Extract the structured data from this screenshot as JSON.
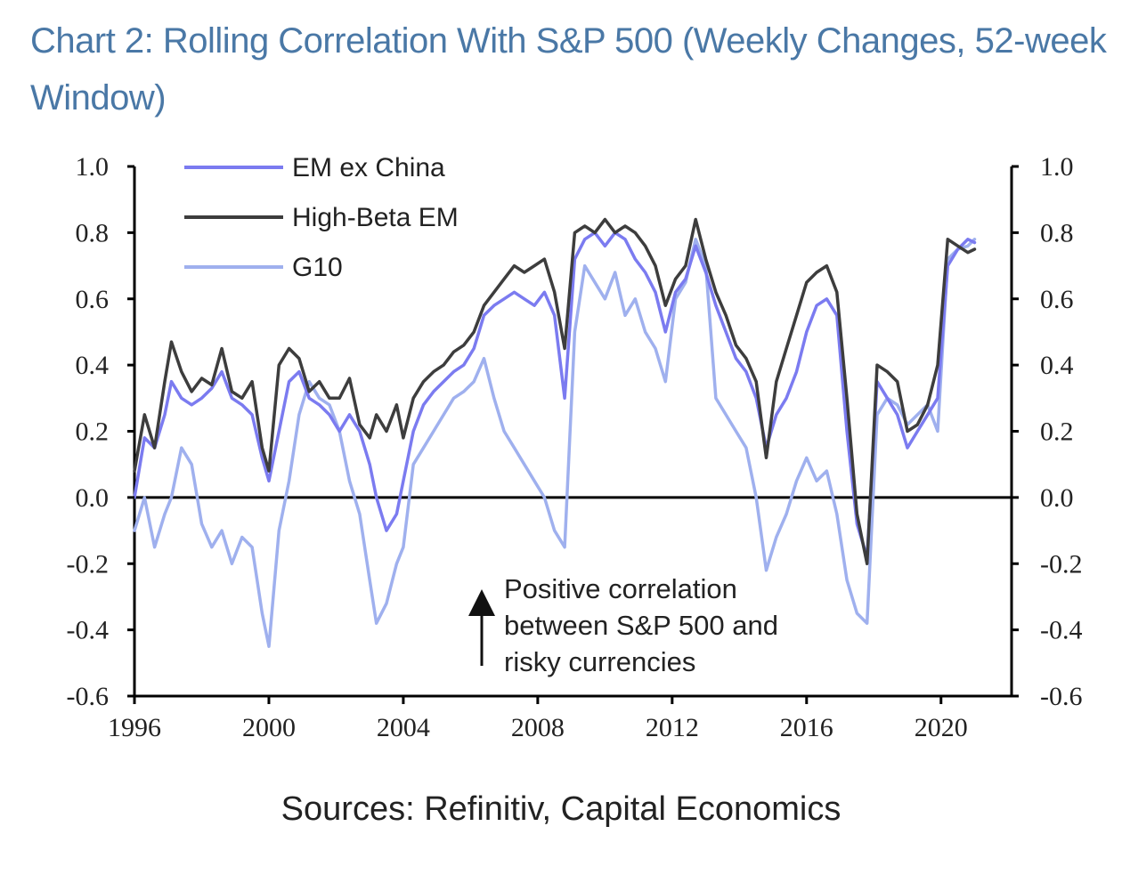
{
  "title": "Chart 2: Rolling Correlation With S&P 500 (Weekly Changes, 52-week Window)",
  "source": "Sources: Refinitiv, Capital Economics",
  "colors": {
    "em_ex_china": "#7b7bf0",
    "high_beta_em": "#3d3d3d",
    "g10": "#9fb0ee",
    "axis": "#000000"
  },
  "chart_data": {
    "type": "line",
    "x_ticks": [
      "1996",
      "2000",
      "2004",
      "2008",
      "2012",
      "2016",
      "2020"
    ],
    "y_ticks": [
      "1.0",
      "0.8",
      "0.6",
      "0.4",
      "0.2",
      "0.0",
      "-0.2",
      "-0.4",
      "-0.6"
    ],
    "xlim": [
      1996,
      2022.1
    ],
    "ylim": [
      -0.6,
      1.0
    ],
    "grid": false,
    "legend_position": "top-left",
    "annotation": [
      "Positive correlation",
      "between S&P 500 and",
      "risky currencies"
    ],
    "series": [
      {
        "name": "EM ex China",
        "x": [
          1996.0,
          1996.3,
          1996.6,
          1996.9,
          1997.1,
          1997.4,
          1997.7,
          1998.0,
          1998.3,
          1998.6,
          1998.9,
          1999.2,
          1999.5,
          1999.8,
          2000.0,
          2000.3,
          2000.6,
          2000.9,
          2001.2,
          2001.5,
          2001.8,
          2002.1,
          2002.4,
          2002.7,
          2003.0,
          2003.2,
          2003.5,
          2003.8,
          2004.0,
          2004.3,
          2004.6,
          2004.9,
          2005.2,
          2005.5,
          2005.8,
          2006.1,
          2006.4,
          2006.7,
          2007.0,
          2007.3,
          2007.6,
          2007.9,
          2008.2,
          2008.5,
          2008.8,
          2009.1,
          2009.4,
          2009.7,
          2010.0,
          2010.3,
          2010.6,
          2010.9,
          2011.2,
          2011.5,
          2011.8,
          2012.1,
          2012.4,
          2012.7,
          2013.0,
          2013.3,
          2013.6,
          2013.9,
          2014.2,
          2014.5,
          2014.8,
          2015.1,
          2015.4,
          2015.7,
          2016.0,
          2016.3,
          2016.6,
          2016.9,
          2017.2,
          2017.5,
          2017.8,
          2018.1,
          2018.4,
          2018.7,
          2019.0,
          2019.3,
          2019.6,
          2019.9,
          2020.2,
          2020.5,
          2020.8,
          2021.0
        ],
        "values": [
          0.0,
          0.18,
          0.15,
          0.25,
          0.35,
          0.3,
          0.28,
          0.3,
          0.33,
          0.38,
          0.3,
          0.28,
          0.25,
          0.12,
          0.05,
          0.2,
          0.35,
          0.38,
          0.3,
          0.28,
          0.25,
          0.2,
          0.25,
          0.2,
          0.1,
          0.0,
          -0.1,
          -0.05,
          0.05,
          0.2,
          0.28,
          0.32,
          0.35,
          0.38,
          0.4,
          0.45,
          0.55,
          0.58,
          0.6,
          0.62,
          0.6,
          0.58,
          0.62,
          0.55,
          0.3,
          0.72,
          0.78,
          0.8,
          0.76,
          0.8,
          0.78,
          0.72,
          0.68,
          0.62,
          0.5,
          0.62,
          0.66,
          0.76,
          0.68,
          0.58,
          0.5,
          0.42,
          0.38,
          0.3,
          0.15,
          0.25,
          0.3,
          0.38,
          0.5,
          0.58,
          0.6,
          0.55,
          0.2,
          -0.08,
          -0.18,
          0.35,
          0.3,
          0.25,
          0.15,
          0.2,
          0.25,
          0.3,
          0.7,
          0.75,
          0.78,
          0.77
        ]
      },
      {
        "name": "High-Beta EM",
        "x": [
          1996.0,
          1996.3,
          1996.6,
          1996.9,
          1997.1,
          1997.4,
          1997.7,
          1998.0,
          1998.3,
          1998.6,
          1998.9,
          1999.2,
          1999.5,
          1999.8,
          2000.0,
          2000.3,
          2000.6,
          2000.9,
          2001.2,
          2001.5,
          2001.8,
          2002.1,
          2002.4,
          2002.7,
          2003.0,
          2003.2,
          2003.5,
          2003.8,
          2004.0,
          2004.3,
          2004.6,
          2004.9,
          2005.2,
          2005.5,
          2005.8,
          2006.1,
          2006.4,
          2006.7,
          2007.0,
          2007.3,
          2007.6,
          2007.9,
          2008.2,
          2008.5,
          2008.8,
          2009.1,
          2009.4,
          2009.7,
          2010.0,
          2010.3,
          2010.6,
          2010.9,
          2011.2,
          2011.5,
          2011.8,
          2012.1,
          2012.4,
          2012.7,
          2013.0,
          2013.3,
          2013.6,
          2013.9,
          2014.2,
          2014.5,
          2014.8,
          2015.1,
          2015.4,
          2015.7,
          2016.0,
          2016.3,
          2016.6,
          2016.9,
          2017.2,
          2017.5,
          2017.8,
          2018.1,
          2018.4,
          2018.7,
          2019.0,
          2019.3,
          2019.6,
          2019.9,
          2020.2,
          2020.5,
          2020.8,
          2021.0
        ],
        "values": [
          0.08,
          0.25,
          0.15,
          0.35,
          0.47,
          0.38,
          0.32,
          0.36,
          0.34,
          0.45,
          0.32,
          0.3,
          0.35,
          0.15,
          0.08,
          0.4,
          0.45,
          0.42,
          0.32,
          0.35,
          0.3,
          0.3,
          0.36,
          0.22,
          0.18,
          0.25,
          0.2,
          0.28,
          0.18,
          0.3,
          0.35,
          0.38,
          0.4,
          0.44,
          0.46,
          0.5,
          0.58,
          0.62,
          0.66,
          0.7,
          0.68,
          0.7,
          0.72,
          0.62,
          0.45,
          0.8,
          0.82,
          0.8,
          0.84,
          0.8,
          0.82,
          0.8,
          0.76,
          0.7,
          0.58,
          0.66,
          0.7,
          0.84,
          0.72,
          0.62,
          0.55,
          0.46,
          0.42,
          0.35,
          0.12,
          0.35,
          0.45,
          0.55,
          0.65,
          0.68,
          0.7,
          0.62,
          0.3,
          -0.05,
          -0.2,
          0.4,
          0.38,
          0.35,
          0.2,
          0.22,
          0.28,
          0.4,
          0.78,
          0.76,
          0.74,
          0.75
        ]
      },
      {
        "name": "G10",
        "x": [
          1996.0,
          1996.3,
          1996.6,
          1996.9,
          1997.1,
          1997.4,
          1997.7,
          1998.0,
          1998.3,
          1998.6,
          1998.9,
          1999.2,
          1999.5,
          1999.8,
          2000.0,
          2000.3,
          2000.6,
          2000.9,
          2001.2,
          2001.5,
          2001.8,
          2002.1,
          2002.4,
          2002.7,
          2003.0,
          2003.2,
          2003.5,
          2003.8,
          2004.0,
          2004.3,
          2004.6,
          2004.9,
          2005.2,
          2005.5,
          2005.8,
          2006.1,
          2006.4,
          2006.7,
          2007.0,
          2007.3,
          2007.6,
          2007.9,
          2008.2,
          2008.5,
          2008.8,
          2009.1,
          2009.4,
          2009.7,
          2010.0,
          2010.3,
          2010.6,
          2010.9,
          2011.2,
          2011.5,
          2011.8,
          2012.1,
          2012.4,
          2012.7,
          2013.0,
          2013.3,
          2013.6,
          2013.9,
          2014.2,
          2014.5,
          2014.8,
          2015.1,
          2015.4,
          2015.7,
          2016.0,
          2016.3,
          2016.6,
          2016.9,
          2017.2,
          2017.5,
          2017.8,
          2018.1,
          2018.4,
          2018.7,
          2019.0,
          2019.3,
          2019.6,
          2019.9,
          2020.2,
          2020.5,
          2020.8,
          2021.0
        ],
        "values": [
          -0.1,
          0.0,
          -0.15,
          -0.05,
          0.0,
          0.15,
          0.1,
          -0.08,
          -0.15,
          -0.1,
          -0.2,
          -0.12,
          -0.15,
          -0.35,
          -0.45,
          -0.1,
          0.05,
          0.25,
          0.35,
          0.3,
          0.28,
          0.2,
          0.05,
          -0.05,
          -0.25,
          -0.38,
          -0.32,
          -0.2,
          -0.15,
          0.1,
          0.15,
          0.2,
          0.25,
          0.3,
          0.32,
          0.35,
          0.42,
          0.3,
          0.2,
          0.15,
          0.1,
          0.05,
          0.0,
          -0.1,
          -0.15,
          0.5,
          0.7,
          0.65,
          0.6,
          0.68,
          0.55,
          0.6,
          0.5,
          0.45,
          0.35,
          0.6,
          0.65,
          0.78,
          0.7,
          0.3,
          0.25,
          0.2,
          0.15,
          0.0,
          -0.22,
          -0.12,
          -0.05,
          0.05,
          0.12,
          0.05,
          0.08,
          -0.05,
          -0.25,
          -0.35,
          -0.38,
          0.25,
          0.3,
          0.28,
          0.22,
          0.25,
          0.28,
          0.2,
          0.72,
          0.75,
          0.76,
          0.78
        ]
      }
    ]
  }
}
